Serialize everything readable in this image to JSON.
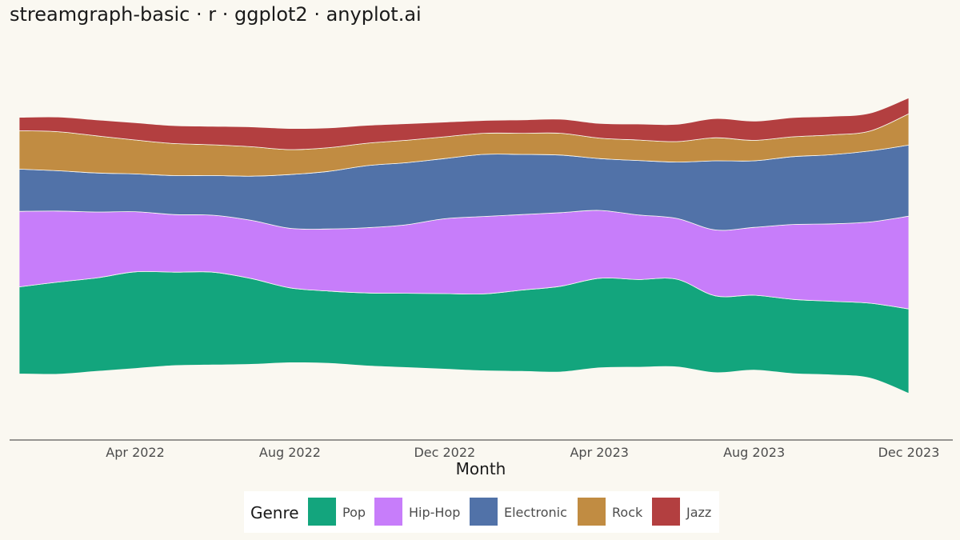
{
  "title": "streamgraph-basic · r · ggplot2 · anyplot.ai",
  "background": "#FAF8F1",
  "chart_data": {
    "type": "area",
    "subtype": "streamgraph",
    "baseline": "symmetric",
    "title": "streamgraph-basic · r · ggplot2 · anyplot.ai",
    "xlabel": "Month",
    "ylabel": "",
    "x": [
      "2022-01",
      "2022-02",
      "2022-03",
      "2022-04",
      "2022-05",
      "2022-06",
      "2022-07",
      "2022-08",
      "2022-09",
      "2022-10",
      "2022-11",
      "2022-12",
      "2023-01",
      "2023-02",
      "2023-03",
      "2023-04",
      "2023-05",
      "2023-06",
      "2023-07",
      "2023-08",
      "2023-09",
      "2023-10",
      "2023-11",
      "2023-12"
    ],
    "x_ticks": [
      "Apr 2022",
      "Aug 2022",
      "Dec 2022",
      "Apr 2023",
      "Aug 2023",
      "Dec 2023"
    ],
    "y_axis_visible": false,
    "grid": false,
    "legend": {
      "title": "Genre",
      "position": "bottom",
      "entries": [
        "Pop",
        "Hip-Hop",
        "Electronic",
        "Rock",
        "Jazz"
      ]
    },
    "series": [
      {
        "name": "Pop",
        "color": "#13A57D",
        "values": [
          136,
          144,
          146,
          151,
          146,
          145,
          134,
          117,
          113,
          114,
          116,
          118,
          120,
          127,
          134,
          140,
          137,
          137,
          120,
          117,
          116,
          115,
          117,
          132
        ]
      },
      {
        "name": "Hip-Hop",
        "color": "#C77DFA",
        "values": [
          118,
          111,
          103,
          94,
          90,
          89,
          91,
          93,
          97,
          102,
          107,
          117,
          121,
          118,
          115,
          106,
          101,
          95,
          103,
          106,
          117,
          121,
          127,
          145
        ]
      },
      {
        "name": "Electronic",
        "color": "#5172A8",
        "values": [
          66,
          63,
          61,
          59,
          61,
          62,
          69,
          84,
          90,
          97,
          97,
          94,
          97,
          94,
          90,
          81,
          85,
          88,
          108,
          104,
          106,
          108,
          111,
          111
        ]
      },
      {
        "name": "Rock",
        "color": "#C18C42",
        "values": [
          60,
          61,
          58,
          53,
          50,
          48,
          46,
          39,
          37,
          35,
          35,
          34,
          33,
          33,
          34,
          32,
          32,
          32,
          36,
          32,
          31,
          31,
          31,
          49
        ]
      },
      {
        "name": "Jazz",
        "color": "#B33F40",
        "values": [
          21,
          23,
          25,
          27,
          28,
          29,
          31,
          33,
          31,
          28,
          26,
          23,
          20,
          21,
          22,
          23,
          25,
          27,
          30,
          30,
          30,
          29,
          28,
          25
        ]
      }
    ]
  }
}
